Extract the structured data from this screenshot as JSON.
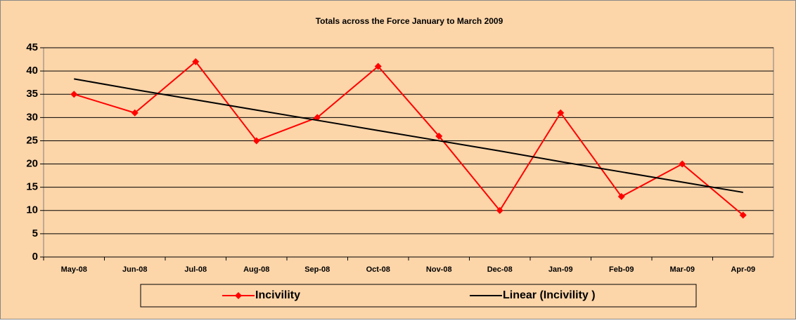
{
  "chart_data": {
    "type": "line",
    "title": "Totals across the Force January to March 2009",
    "categories": [
      "May-08",
      "Jun-08",
      "Jul-08",
      "Aug-08",
      "Sep-08",
      "Oct-08",
      "Nov-08",
      "Dec-08",
      "Jan-09",
      "Feb-09",
      "Mar-09",
      "Apr-09"
    ],
    "series": [
      {
        "name": "Incivility",
        "color": "#ff0000",
        "marker": "diamond",
        "values": [
          35,
          31,
          42,
          25,
          30,
          41,
          26,
          10,
          31,
          13,
          20,
          9
        ]
      },
      {
        "name": "Linear (Incivility )",
        "color": "#000000",
        "marker": "none",
        "values": [
          38.3,
          36.0,
          33.8,
          31.6,
          29.4,
          27.2,
          25.0,
          22.8,
          20.5,
          18.3,
          16.1,
          13.9
        ]
      }
    ],
    "ylim": [
      0,
      45
    ],
    "yticks": [
      0,
      5,
      10,
      15,
      20,
      25,
      30,
      35,
      40,
      45
    ],
    "grid": true,
    "legend": "bottom"
  }
}
